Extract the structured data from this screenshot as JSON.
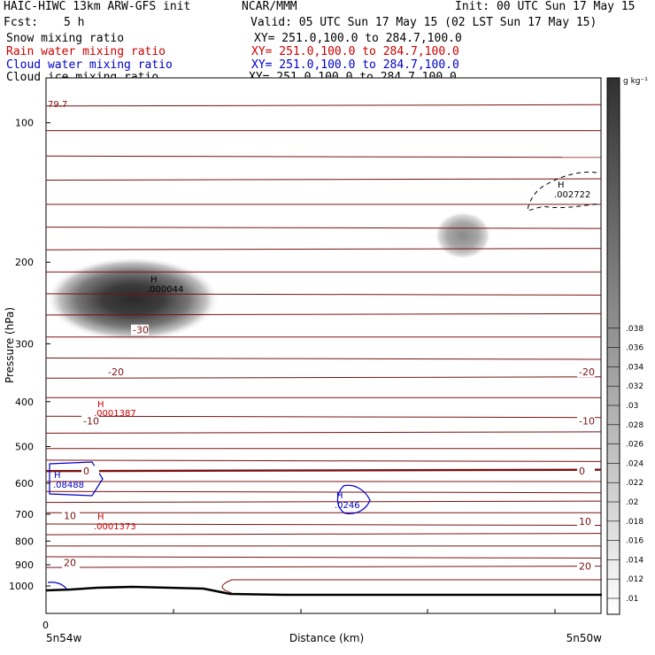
{
  "header": {
    "title": "HAIC-HIWC 13km ARW-GFS init",
    "org": "NCAR/MMM",
    "init": "Init: 00 UTC Sun 17 May 15",
    "fcst_label": "Fcst:",
    "fcst_value": "5 h",
    "valid": "Valid: 05 UTC Sun 17 May 15 (02 LST Sun 17 May 15)"
  },
  "fields": [
    {
      "name": "Snow mixing ratio",
      "xy": "XY= 251.0,100.0 to 284.7,100.0",
      "color": "#000000"
    },
    {
      "name": "Rain water mixing ratio",
      "xy": "XY= 251.0,100.0 to 284.7,100.0",
      "color": "#cc0000"
    },
    {
      "name": "Cloud water mixing ratio",
      "xy": "XY= 251.0,100.0 to 284.7,100.0",
      "color": "#0000cc"
    },
    {
      "name": "Cloud ice mixing ratio",
      "xy": "XY= 251.0,100.0 to 284.7,100.0",
      "color": "#000000"
    }
  ],
  "chart_data": {
    "type": "heatmap",
    "ylabel": "Pressure (hPa)",
    "xlabel": "Distance (km)",
    "x_left_label": "5n54w",
    "x_right_label": "5n50w",
    "x_origin_label": "0",
    "y_ticks": [
      "100",
      "200",
      "300",
      "400",
      "500",
      "600",
      "700",
      "800",
      "900",
      "1000"
    ],
    "y_scale": "log",
    "ylim": [
      1050,
      80
    ],
    "colorbar": {
      "unit": "g kg⁻¹",
      "ticks": [
        ".01",
        ".012",
        ".014",
        ".016",
        ".018",
        ".02",
        ".022",
        ".024",
        ".026",
        ".028",
        ".03",
        ".032",
        ".034",
        ".036",
        ".038"
      ]
    },
    "temperature_labels": [
      {
        "text": "-30",
        "p": 280,
        "side": "left"
      },
      {
        "text": "-20",
        "p": 345,
        "side": "left"
      },
      {
        "text": "-10",
        "p": 440,
        "side": "left"
      },
      {
        "text": "0",
        "p": 565,
        "side": "left"
      },
      {
        "text": "10",
        "p": 705,
        "side": "left"
      },
      {
        "text": "20",
        "p": 890,
        "side": "left"
      },
      {
        "text": "-20",
        "p": 345,
        "side": "right"
      },
      {
        "text": "-10",
        "p": 440,
        "side": "right"
      },
      {
        "text": "0",
        "p": 565,
        "side": "right"
      },
      {
        "text": "10",
        "p": 725,
        "side": "right"
      },
      {
        "text": "20",
        "p": 905,
        "side": "right"
      }
    ],
    "top_label": "79.7",
    "maxima": [
      {
        "field": "Snow mixing ratio",
        "marker": "H",
        "value": ".000044",
        "color": "#000000"
      },
      {
        "field": "Cloud ice mixing ratio",
        "marker": "H",
        "value": ".002722",
        "color": "#000000"
      },
      {
        "field": "Rain water mixing ratio",
        "marker": "H",
        "value": ".0001387",
        "color": "#cc0000"
      },
      {
        "field": "Rain water mixing ratio",
        "marker": "H",
        "value": ".0001373",
        "color": "#cc0000"
      },
      {
        "field": "Cloud water mixing ratio",
        "marker": "H",
        "value": ".08488",
        "color": "#0000cc"
      },
      {
        "field": "Cloud water mixing ratio",
        "marker": "H",
        "value": ".0246",
        "color": "#0000cc"
      }
    ],
    "isotherm_pressures": [
      92,
      104,
      118,
      133,
      150,
      168,
      188,
      210,
      234,
      260,
      290,
      322,
      356,
      392,
      430,
      468,
      505,
      535,
      565,
      595,
      625,
      660,
      695,
      735,
      775,
      820,
      865,
      912
    ],
    "grid": false
  }
}
